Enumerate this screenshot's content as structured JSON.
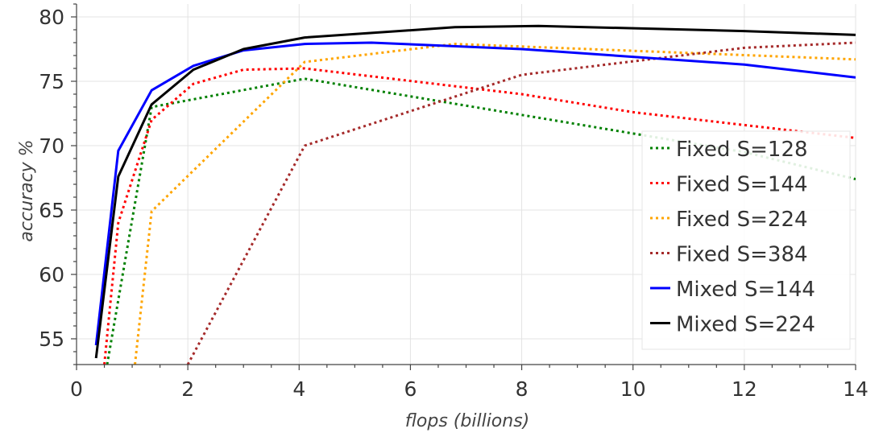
{
  "chart_data": {
    "type": "line",
    "title": "",
    "xlabel": "flops (billions)",
    "ylabel": "accuracy %",
    "xlim": [
      0,
      14
    ],
    "ylim": [
      53,
      81
    ],
    "xticks": [
      0,
      2,
      4,
      6,
      8,
      10,
      12,
      14
    ],
    "yticks": [
      55,
      60,
      65,
      70,
      75,
      80
    ],
    "grid": true,
    "legend_position": "bottom-right",
    "series": [
      {
        "name": "Fixed S=128",
        "color": "#008000",
        "dash": "dotted",
        "x": [
          0.55,
          1.35,
          4.1,
          12,
          14
        ],
        "y": [
          53,
          73.0,
          75.2,
          69.5,
          67.4
        ]
      },
      {
        "name": "Fixed S=144",
        "color": "#ff0000",
        "dash": "dotted",
        "x": [
          0.5,
          0.75,
          1.35,
          2.1,
          3.0,
          4.1,
          8,
          10,
          14
        ],
        "y": [
          53,
          64.0,
          72.0,
          74.8,
          75.9,
          76.0,
          74.0,
          72.6,
          70.6
        ]
      },
      {
        "name": "Fixed S=224",
        "color": "#ffa500",
        "dash": "dotted",
        "x": [
          1.05,
          1.35,
          4.1,
          6.8,
          14
        ],
        "y": [
          53,
          64.9,
          76.5,
          77.9,
          76.7
        ]
      },
      {
        "name": "Fixed S=384",
        "color": "#a52a2a",
        "dash": "dotted",
        "x": [
          2.0,
          4.1,
          8,
          12,
          14
        ],
        "y": [
          53,
          70.0,
          75.5,
          77.6,
          78.0
        ]
      },
      {
        "name": "Mixed S=144",
        "color": "#0000ff",
        "dash": "solid",
        "x": [
          0.35,
          0.75,
          1.35,
          2.1,
          3.0,
          4.1,
          5.3,
          8,
          12,
          14
        ],
        "y": [
          54.5,
          69.6,
          74.3,
          76.2,
          77.4,
          77.9,
          78.0,
          77.5,
          76.3,
          75.3
        ]
      },
      {
        "name": "Mixed S=224",
        "color": "#000000",
        "dash": "solid",
        "x": [
          0.35,
          0.75,
          1.35,
          2.1,
          3.0,
          4.1,
          6.8,
          8.3,
          12,
          14
        ],
        "y": [
          53.5,
          67.6,
          73.2,
          75.9,
          77.5,
          78.4,
          79.2,
          79.3,
          78.9,
          78.6
        ]
      }
    ]
  }
}
